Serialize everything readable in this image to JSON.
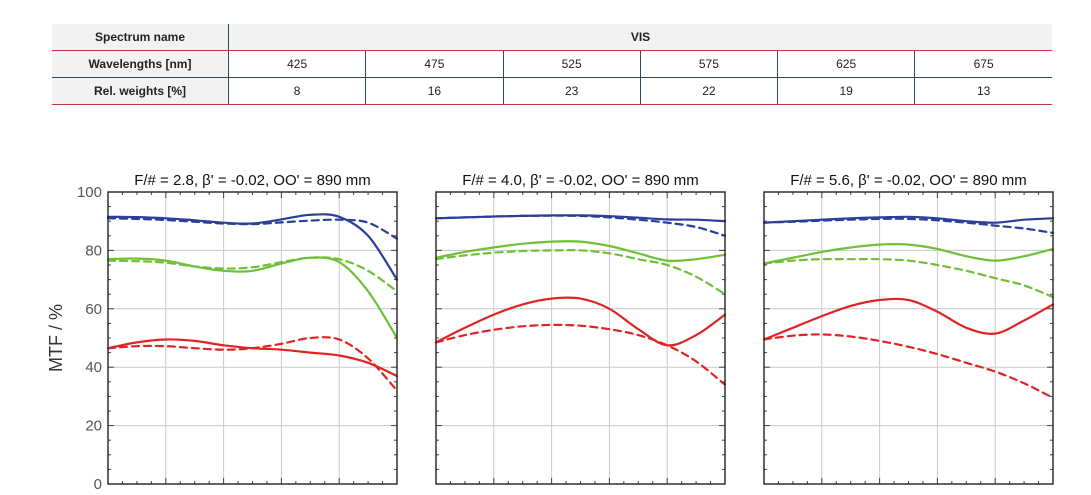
{
  "table": {
    "spectrum_label": "Spectrum name",
    "spectrum_value": "VIS",
    "wavelengths_label": "Wavelengths [nm]",
    "wavelengths": [
      "425",
      "475",
      "525",
      "575",
      "625",
      "675"
    ],
    "weights_label": "Rel. weights [%]",
    "weights": [
      "8",
      "16",
      "23",
      "22",
      "19",
      "13"
    ]
  },
  "colors": {
    "blue": "#2b3f9a",
    "green": "#6ec036",
    "red": "#e02424"
  },
  "chart_data": [
    {
      "type": "line",
      "title": "F/# = 2.8, β' = -0.02, OO' = 890 mm",
      "ylabel": "MTF / %",
      "ylim": [
        0,
        100
      ],
      "xlim": [
        0,
        1
      ],
      "yticks": [
        "0",
        "20",
        "40",
        "60",
        "80",
        "100"
      ],
      "grid": true,
      "series": [
        {
          "color": "blue",
          "dash": false,
          "x": [
            0,
            0.1,
            0.2,
            0.3,
            0.4,
            0.5,
            0.6,
            0.7,
            0.8,
            0.9,
            1.0
          ],
          "y": [
            91.5,
            91.4,
            91,
            90.3,
            89.5,
            89.2,
            90.6,
            92.2,
            91.5,
            85,
            70
          ]
        },
        {
          "color": "blue",
          "dash": true,
          "x": [
            0,
            0.1,
            0.2,
            0.3,
            0.4,
            0.5,
            0.6,
            0.7,
            0.8,
            0.9,
            1.0
          ],
          "y": [
            91,
            90.8,
            90.4,
            89.8,
            89.2,
            89,
            89.6,
            90.2,
            90.5,
            89.5,
            84
          ]
        },
        {
          "color": "green",
          "dash": false,
          "x": [
            0,
            0.1,
            0.2,
            0.3,
            0.4,
            0.5,
            0.6,
            0.7,
            0.8,
            0.9,
            1.0
          ],
          "y": [
            77,
            77.2,
            76.5,
            74.5,
            73,
            73,
            75.5,
            77.5,
            76,
            66,
            50
          ]
        },
        {
          "color": "green",
          "dash": true,
          "x": [
            0,
            0.1,
            0.2,
            0.3,
            0.4,
            0.5,
            0.6,
            0.7,
            0.8,
            0.9,
            1.0
          ],
          "y": [
            76.5,
            76.3,
            75.8,
            74.5,
            73.8,
            74.2,
            76,
            77.5,
            77,
            73,
            66
          ]
        },
        {
          "color": "red",
          "dash": false,
          "x": [
            0,
            0.1,
            0.2,
            0.3,
            0.4,
            0.5,
            0.6,
            0.7,
            0.8,
            0.9,
            1.0
          ],
          "y": [
            46.5,
            48.5,
            49.5,
            49,
            47.5,
            46.5,
            46,
            45,
            44,
            41.5,
            37
          ]
        },
        {
          "color": "red",
          "dash": true,
          "x": [
            0,
            0.1,
            0.2,
            0.3,
            0.4,
            0.5,
            0.6,
            0.7,
            0.8,
            0.9,
            1.0
          ],
          "y": [
            46.5,
            47.2,
            47.2,
            46.5,
            46,
            46.5,
            48,
            50,
            49.5,
            43,
            32
          ]
        }
      ]
    },
    {
      "type": "line",
      "title": "F/# = 4.0, β' = -0.02, OO' = 890 mm",
      "ylim": [
        0,
        100
      ],
      "xlim": [
        0,
        1
      ],
      "grid": true,
      "series": [
        {
          "color": "blue",
          "dash": false,
          "x": [
            0,
            0.1,
            0.2,
            0.3,
            0.4,
            0.5,
            0.6,
            0.7,
            0.8,
            0.9,
            1.0
          ],
          "y": [
            91,
            91.3,
            91.6,
            91.8,
            92,
            92,
            91.7,
            91.2,
            90.6,
            90.5,
            90
          ]
        },
        {
          "color": "blue",
          "dash": true,
          "x": [
            0,
            0.1,
            0.2,
            0.3,
            0.4,
            0.5,
            0.6,
            0.7,
            0.8,
            0.9,
            1.0
          ],
          "y": [
            91,
            91.3,
            91.6,
            91.8,
            91.9,
            91.8,
            91.3,
            90.5,
            89.5,
            88,
            85
          ]
        },
        {
          "color": "green",
          "dash": false,
          "x": [
            0,
            0.1,
            0.2,
            0.3,
            0.4,
            0.5,
            0.6,
            0.7,
            0.8,
            0.9,
            1.0
          ],
          "y": [
            77.5,
            79.5,
            81,
            82.3,
            83,
            83,
            81.5,
            79,
            76.5,
            77,
            78.5
          ]
        },
        {
          "color": "green",
          "dash": true,
          "x": [
            0,
            0.1,
            0.2,
            0.3,
            0.4,
            0.5,
            0.6,
            0.7,
            0.8,
            0.9,
            1.0
          ],
          "y": [
            77,
            78.3,
            79.2,
            79.8,
            80,
            80,
            79,
            77,
            75,
            71,
            65
          ]
        },
        {
          "color": "red",
          "dash": false,
          "x": [
            0,
            0.1,
            0.2,
            0.3,
            0.4,
            0.5,
            0.6,
            0.7,
            0.8,
            0.9,
            1.0
          ],
          "y": [
            48.5,
            53.5,
            58,
            61.5,
            63.5,
            63.5,
            60,
            53,
            47.5,
            51,
            58
          ]
        },
        {
          "color": "red",
          "dash": true,
          "x": [
            0,
            0.1,
            0.2,
            0.3,
            0.4,
            0.5,
            0.6,
            0.7,
            0.8,
            0.9,
            1.0
          ],
          "y": [
            48.5,
            51,
            52.8,
            54,
            54.5,
            54.2,
            53,
            51,
            47.5,
            42,
            34
          ]
        }
      ]
    },
    {
      "type": "line",
      "title": "F/# = 5.6, β' = -0.02, OO' = 890 mm",
      "ylim": [
        0,
        100
      ],
      "xlim": [
        0,
        1
      ],
      "grid": true,
      "series": [
        {
          "color": "blue",
          "dash": false,
          "x": [
            0,
            0.1,
            0.2,
            0.3,
            0.4,
            0.5,
            0.6,
            0.7,
            0.8,
            0.9,
            1.0
          ],
          "y": [
            89.5,
            90,
            90.5,
            91,
            91.3,
            91.5,
            91,
            90,
            89.5,
            90.5,
            91
          ]
        },
        {
          "color": "blue",
          "dash": true,
          "x": [
            0,
            0.1,
            0.2,
            0.3,
            0.4,
            0.5,
            0.6,
            0.7,
            0.8,
            0.9,
            1.0
          ],
          "y": [
            89.5,
            89.8,
            90.2,
            90.5,
            90.8,
            90.8,
            90.3,
            89.5,
            88.5,
            87.5,
            86
          ]
        },
        {
          "color": "green",
          "dash": false,
          "x": [
            0,
            0.1,
            0.2,
            0.3,
            0.4,
            0.5,
            0.6,
            0.7,
            0.8,
            0.9,
            1.0
          ],
          "y": [
            75.5,
            77.5,
            79.5,
            81,
            82,
            82,
            80.5,
            78,
            76.5,
            78,
            80.5
          ]
        },
        {
          "color": "green",
          "dash": true,
          "x": [
            0,
            0.1,
            0.2,
            0.3,
            0.4,
            0.5,
            0.6,
            0.7,
            0.8,
            0.9,
            1.0
          ],
          "y": [
            75.5,
            76.5,
            77,
            77,
            77,
            76.5,
            75,
            73,
            70.5,
            68,
            64
          ]
        },
        {
          "color": "red",
          "dash": false,
          "x": [
            0,
            0.1,
            0.2,
            0.3,
            0.4,
            0.5,
            0.6,
            0.7,
            0.8,
            0.9,
            1.0
          ],
          "y": [
            49.5,
            53.5,
            57.5,
            61,
            63,
            63,
            59,
            53.5,
            51.5,
            56,
            61.5
          ]
        },
        {
          "color": "red",
          "dash": true,
          "x": [
            0,
            0.1,
            0.2,
            0.3,
            0.4,
            0.5,
            0.6,
            0.7,
            0.8,
            0.9,
            1.0
          ],
          "y": [
            49.5,
            50.8,
            51.2,
            50.5,
            49,
            47,
            44.5,
            41.5,
            38.5,
            34.5,
            29.5
          ]
        }
      ]
    }
  ]
}
